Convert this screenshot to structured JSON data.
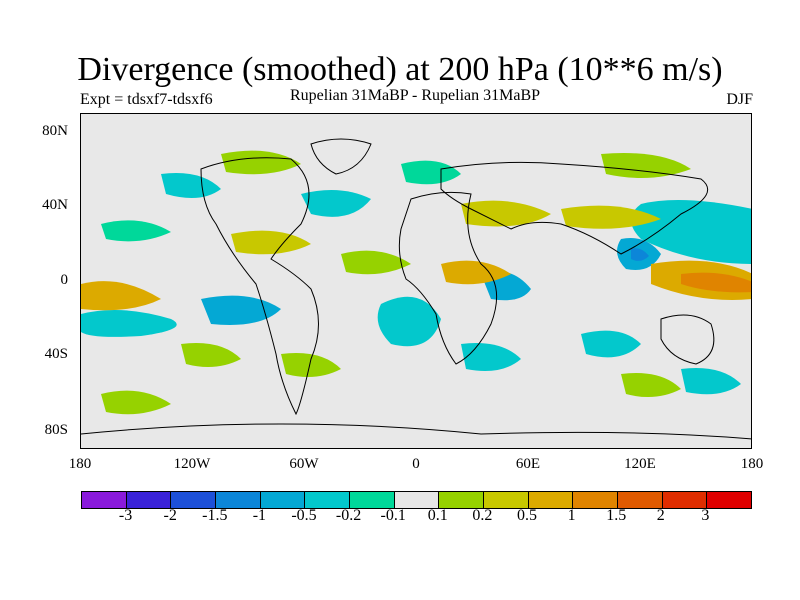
{
  "title": "Divergence (smoothed) at 200 hPa (10**6 m/s)",
  "experiment": "Expt = tdsxf7-tdsxf6",
  "subtitle": "Rupelian  31MaBP - Rupelian  31MaBP",
  "season": "DJF",
  "lat_labels": [
    "80N",
    "40N",
    "0",
    "40S",
    "80S"
  ],
  "lon_labels": [
    "180",
    "120W",
    "60W",
    "0",
    "60E",
    "120E",
    "180"
  ],
  "colorbar": {
    "labels": [
      "-3",
      "-2",
      "-1.5",
      "-1",
      "-0.5",
      "-0.2",
      "-0.1",
      "0.1",
      "0.2",
      "0.5",
      "1",
      "1.5",
      "2",
      "3"
    ],
    "colors": [
      "#8a1adb",
      "#3a22d8",
      "#1d50d8",
      "#0c86d8",
      "#04a8d4",
      "#03c8cc",
      "#00d89a",
      "#e6e6e6",
      "#96d200",
      "#c8c800",
      "#dcaa00",
      "#e08400",
      "#e05a00",
      "#e02d00",
      "#e00000"
    ]
  }
}
